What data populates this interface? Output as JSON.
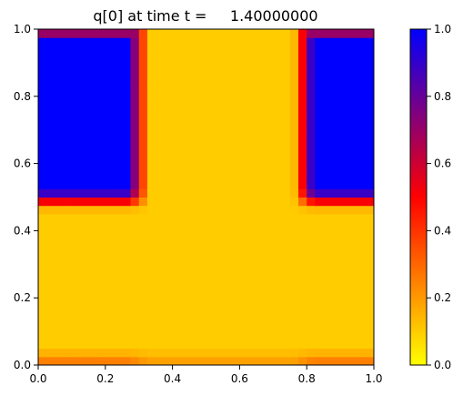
{
  "chart_data": {
    "type": "heatmap",
    "title": "q[0] at time t =     1.40000000",
    "xlabel": "",
    "ylabel": "",
    "xlim": [
      0.0,
      1.0
    ],
    "ylim": [
      0.0,
      1.0
    ],
    "x_ticks": [
      0.0,
      0.2,
      0.4,
      0.6,
      0.8,
      1.0
    ],
    "y_ticks": [
      0.0,
      0.2,
      0.4,
      0.6,
      0.8,
      1.0
    ],
    "x_tick_labels": [
      "0.0",
      "0.2",
      "0.4",
      "0.6",
      "0.8",
      "1.0"
    ],
    "y_tick_labels": [
      "0.0",
      "0.2",
      "0.4",
      "0.6",
      "0.8",
      "1.0"
    ],
    "grid": false,
    "grid_size": [
      40,
      40
    ],
    "field": {
      "description": "q value on a 40x40 grid; near 1.0 in the two top blocks (x<0.27 and x>0.82 for y>0.52), ~0.1 background, with thin smeared fronts and a faint band near y=0.",
      "background_value": 0.1,
      "blocks": [
        {
          "x_range": [
            0.0,
            0.27
          ],
          "y_range": [
            0.52,
            1.0
          ],
          "value": 1.0
        },
        {
          "x_range": [
            0.82,
            1.0
          ],
          "y_range": [
            0.52,
            1.0
          ],
          "value": 1.0
        }
      ],
      "top_band_value": 0.7,
      "bottom_band_value": 0.3
    },
    "colorbar": {
      "vmin": 0.0,
      "vmax": 1.0,
      "ticks": [
        0.0,
        0.2,
        0.4,
        0.6,
        0.8,
        1.0
      ],
      "tick_labels": [
        "0.0",
        "0.2",
        "0.4",
        "0.6",
        "0.8",
        "1.0"
      ],
      "colors": [
        "#ffff00",
        "#ff0000",
        "#0000ff"
      ]
    }
  }
}
